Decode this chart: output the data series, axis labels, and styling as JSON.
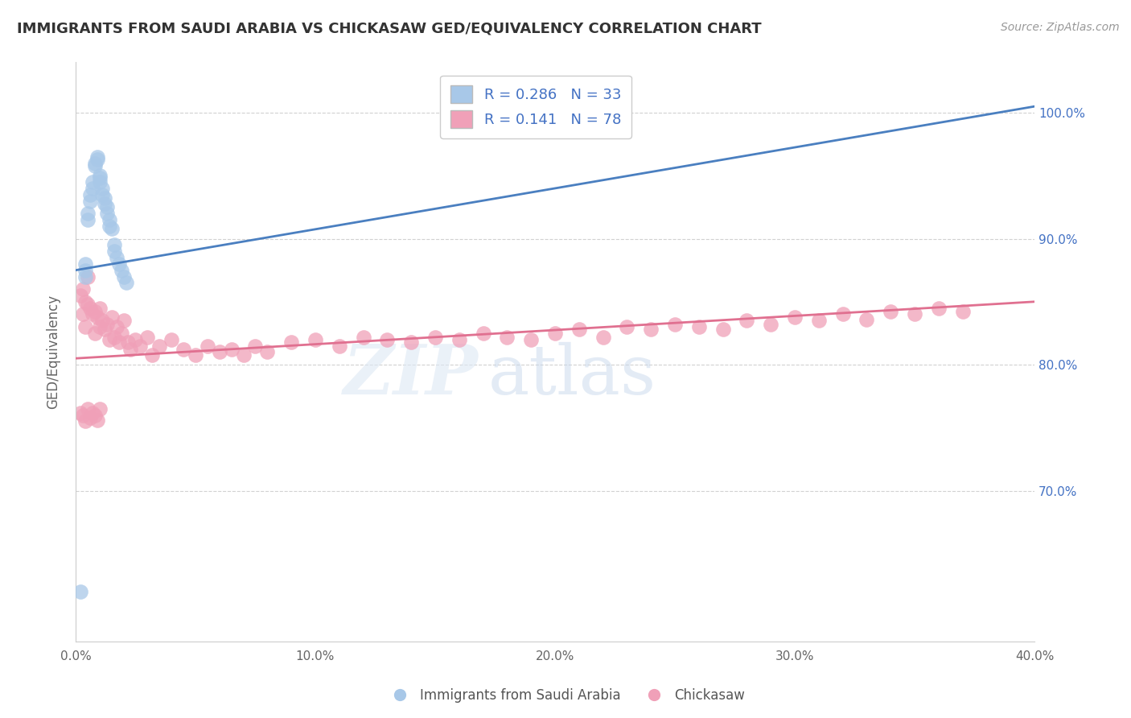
{
  "title": "IMMIGRANTS FROM SAUDI ARABIA VS CHICKASAW GED/EQUIVALENCY CORRELATION CHART",
  "source": "Source: ZipAtlas.com",
  "xlabel_legend1": "Immigrants from Saudi Arabia",
  "xlabel_legend2": "Chickasaw",
  "ylabel": "GED/Equivalency",
  "r_blue": 0.286,
  "n_blue": 33,
  "r_pink": 0.141,
  "n_pink": 78,
  "xlim": [
    0.0,
    0.4
  ],
  "ylim": [
    0.58,
    1.04
  ],
  "yticks": [
    0.7,
    0.8,
    0.9,
    1.0
  ],
  "ytick_labels": [
    "70.0%",
    "80.0%",
    "90.0%",
    "100.0%"
  ],
  "xticks": [
    0.0,
    0.1,
    0.2,
    0.3,
    0.4
  ],
  "xtick_labels": [
    "0.0%",
    "10.0%",
    "20.0%",
    "30.0%",
    "40.0%"
  ],
  "blue_color": "#a8c8e8",
  "pink_color": "#f0a0b8",
  "blue_line_color": "#4a7fc0",
  "pink_line_color": "#e07090",
  "watermark_zip": "ZIP",
  "watermark_atlas": "atlas",
  "background_color": "#ffffff",
  "blue_x": [
    0.004,
    0.004,
    0.004,
    0.005,
    0.005,
    0.006,
    0.006,
    0.007,
    0.007,
    0.008,
    0.008,
    0.009,
    0.009,
    0.01,
    0.01,
    0.01,
    0.011,
    0.011,
    0.012,
    0.012,
    0.013,
    0.013,
    0.014,
    0.014,
    0.015,
    0.016,
    0.016,
    0.017,
    0.018,
    0.019,
    0.02,
    0.021,
    0.002
  ],
  "blue_y": [
    0.88,
    0.875,
    0.87,
    0.92,
    0.915,
    0.935,
    0.93,
    0.945,
    0.94,
    0.96,
    0.958,
    0.965,
    0.963,
    0.95,
    0.948,
    0.945,
    0.94,
    0.935,
    0.932,
    0.928,
    0.925,
    0.92,
    0.915,
    0.91,
    0.908,
    0.895,
    0.89,
    0.885,
    0.88,
    0.875,
    0.87,
    0.865,
    0.62
  ],
  "pink_x": [
    0.002,
    0.003,
    0.003,
    0.004,
    0.004,
    0.005,
    0.005,
    0.006,
    0.007,
    0.008,
    0.008,
    0.009,
    0.01,
    0.01,
    0.011,
    0.012,
    0.013,
    0.014,
    0.015,
    0.016,
    0.017,
    0.018,
    0.019,
    0.02,
    0.022,
    0.023,
    0.025,
    0.027,
    0.03,
    0.032,
    0.035,
    0.04,
    0.045,
    0.05,
    0.055,
    0.06,
    0.065,
    0.07,
    0.075,
    0.08,
    0.09,
    0.1,
    0.11,
    0.12,
    0.13,
    0.14,
    0.15,
    0.16,
    0.17,
    0.18,
    0.19,
    0.2,
    0.21,
    0.22,
    0.23,
    0.24,
    0.25,
    0.26,
    0.27,
    0.28,
    0.29,
    0.3,
    0.31,
    0.32,
    0.33,
    0.34,
    0.35,
    0.36,
    0.37,
    0.002,
    0.003,
    0.004,
    0.005,
    0.006,
    0.007,
    0.008,
    0.009,
    0.01
  ],
  "pink_y": [
    0.855,
    0.86,
    0.84,
    0.85,
    0.83,
    0.87,
    0.848,
    0.845,
    0.84,
    0.842,
    0.825,
    0.838,
    0.845,
    0.83,
    0.835,
    0.828,
    0.832,
    0.82,
    0.838,
    0.822,
    0.83,
    0.818,
    0.825,
    0.835,
    0.818,
    0.812,
    0.82,
    0.815,
    0.822,
    0.808,
    0.815,
    0.82,
    0.812,
    0.808,
    0.815,
    0.81,
    0.812,
    0.808,
    0.815,
    0.81,
    0.818,
    0.82,
    0.815,
    0.822,
    0.82,
    0.818,
    0.822,
    0.82,
    0.825,
    0.822,
    0.82,
    0.825,
    0.828,
    0.822,
    0.83,
    0.828,
    0.832,
    0.83,
    0.828,
    0.835,
    0.832,
    0.838,
    0.835,
    0.84,
    0.836,
    0.842,
    0.84,
    0.845,
    0.842,
    0.762,
    0.76,
    0.755,
    0.765,
    0.758,
    0.762,
    0.76,
    0.756,
    0.765
  ],
  "blue_trend_x": [
    0.0,
    0.4
  ],
  "blue_trend_y": [
    0.875,
    1.005
  ],
  "pink_trend_x": [
    0.0,
    0.4
  ],
  "pink_trend_y": [
    0.805,
    0.85
  ]
}
